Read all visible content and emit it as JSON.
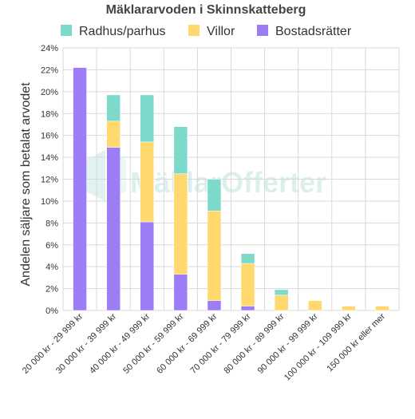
{
  "chart_data": {
    "type": "bar",
    "stacked": true,
    "title": "Mäklararvoden i Skinnskatteberg",
    "ylabel": "Andelen säljare som betalat arvodet",
    "xlabel": "",
    "ylim": [
      0,
      24
    ],
    "yticks": [
      "0%",
      "2%",
      "4%",
      "6%",
      "8%",
      "10%",
      "12%",
      "14%",
      "16%",
      "18%",
      "20%",
      "22%",
      "24%"
    ],
    "grid": true,
    "legend_position": "top",
    "categories": [
      "20 000 kr - 29 999 kr",
      "30 000 kr - 39 999 kr",
      "40 000 kr - 49 999 kr",
      "50 000 kr - 59 999 kr",
      "60 000 kr - 69 999 kr",
      "70 000 kr - 79 999 kr",
      "80 000 kr - 89 999 kr",
      "90 000 kr - 99 999 kr",
      "100 000 kr - 109 999 kr",
      "150 000 kr eller mer"
    ],
    "series": [
      {
        "name": "Bostadsrätter",
        "color": "#9d7df5",
        "values": [
          22.2,
          14.9,
          8.1,
          3.3,
          0.9,
          0.4,
          0,
          0,
          0,
          0
        ]
      },
      {
        "name": "Villor",
        "color": "#ffd86e",
        "values": [
          0,
          2.4,
          7.3,
          9.2,
          8.2,
          3.9,
          1.4,
          0.9,
          0.4,
          0.4
        ]
      },
      {
        "name": "Radhus/parhus",
        "color": "#7ddacb",
        "values": [
          0,
          2.4,
          4.3,
          4.3,
          2.9,
          0.9,
          0.5,
          0,
          0,
          0
        ]
      }
    ],
    "legend_order": [
      "Radhus/parhus",
      "Villor",
      "Bostadsrätter"
    ],
    "watermark": "MäklarOfferter"
  }
}
